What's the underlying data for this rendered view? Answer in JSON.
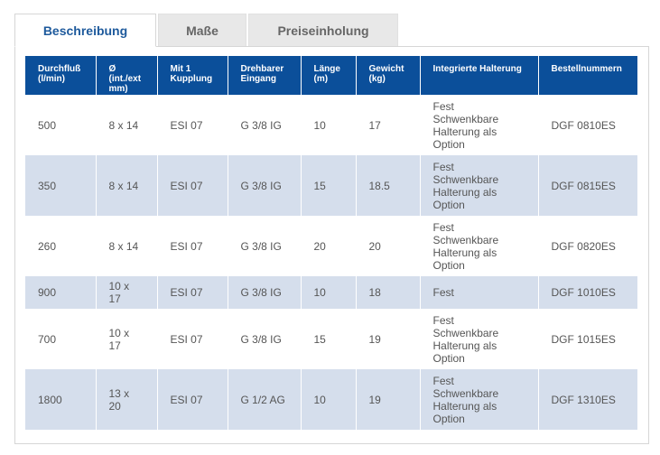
{
  "tabs": [
    {
      "label": "Beschreibung",
      "active": true
    },
    {
      "label": "Maße",
      "active": false
    },
    {
      "label": "Preiseinholung",
      "active": false
    }
  ],
  "table": {
    "headers": [
      {
        "line1": "Durchfluß",
        "line2": "(l/min)",
        "line3": ""
      },
      {
        "line1": "Ø",
        "line2": "(int./ext",
        "line3": "mm)"
      },
      {
        "line1": "Mit 1",
        "line2": "Kupplung",
        "line3": ""
      },
      {
        "line1": "Drehbarer",
        "line2": "Eingang",
        "line3": ""
      },
      {
        "line1": "Länge",
        "line2": "(m)",
        "line3": ""
      },
      {
        "line1": "Gewicht",
        "line2": "(kg)",
        "line3": ""
      },
      {
        "line1": "Integrierte Halterung",
        "line2": "",
        "line3": ""
      },
      {
        "line1": "Bestellnummern",
        "line2": "",
        "line3": ""
      }
    ],
    "rows": [
      {
        "flow": "500",
        "diam_1": "8 x 14",
        "diam_2": "",
        "coupling": "ESI 07",
        "inlet": "G 3/8 IG",
        "length": "10",
        "weight": "17",
        "mount": [
          "Fest",
          "Schwenkbare",
          "Halterung als",
          "Option"
        ],
        "order": "DGF 0810ES"
      },
      {
        "flow": "350",
        "diam_1": "8 x 14",
        "diam_2": "",
        "coupling": "ESI 07",
        "inlet": "G 3/8 IG",
        "length": "15",
        "weight": "18.5",
        "mount": [
          "Fest",
          "Schwenkbare",
          "Halterung als",
          "Option"
        ],
        "order": "DGF 0815ES"
      },
      {
        "flow": "260",
        "diam_1": "8 x 14",
        "diam_2": "",
        "coupling": "ESI 07",
        "inlet": "G 3/8 IG",
        "length": "20",
        "weight": "20",
        "mount": [
          "Fest",
          "Schwenkbare",
          "Halterung als",
          "Option"
        ],
        "order": "DGF 0820ES"
      },
      {
        "flow": "900",
        "diam_1": "10 x",
        "diam_2": "17",
        "coupling": "ESI 07",
        "inlet": "G 3/8 IG",
        "length": "10",
        "weight": "18",
        "mount": [
          "Fest",
          "",
          "",
          ""
        ],
        "order": "DGF 1010ES"
      },
      {
        "flow": "700",
        "diam_1": "10 x",
        "diam_2": "17",
        "coupling": "ESI 07",
        "inlet": "G 3/8 IG",
        "length": "15",
        "weight": "19",
        "mount": [
          "Fest",
          "Schwenkbare",
          "Halterung als",
          "Option"
        ],
        "order": "DGF 1015ES"
      },
      {
        "flow": "1800",
        "diam_1": "13 x",
        "diam_2": "20",
        "coupling": "ESI 07",
        "inlet": "G 1/2 AG",
        "length": "10",
        "weight": "19",
        "mount": [
          "Fest",
          "Schwenkbare",
          "Halterung als",
          "Option"
        ],
        "order": "DGF 1310ES"
      }
    ]
  },
  "colors": {
    "accent": "#0b4f9a",
    "row_alt": "#d5deec",
    "tab_active_text": "#1e5a9c"
  }
}
